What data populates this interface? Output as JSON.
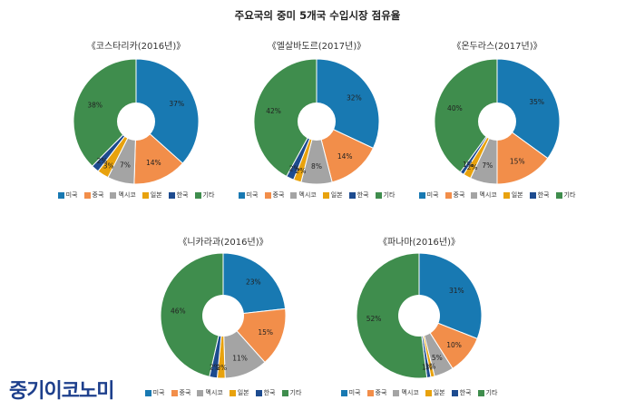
{
  "title": "주요국의 중미 5개국 수입시장 점유율",
  "brand": "중기이코노미",
  "colors": {
    "미국": "#1879b2",
    "중국": "#f28e4a",
    "멕시코": "#a4a4a4",
    "일본": "#e8a20d",
    "한국": "#1d4b8f",
    "기타": "#3f8d4d"
  },
  "chart_data": [
    {
      "type": "pie",
      "title": "《코스타리카(2016년)》",
      "categories": [
        "미국",
        "중국",
        "멕시코",
        "일본",
        "한국",
        "기타"
      ],
      "values": [
        37,
        14,
        7,
        3,
        2,
        38
      ],
      "labels": [
        "37%",
        "14%",
        "7%",
        "3%",
        "2%",
        "38%"
      ]
    },
    {
      "type": "pie",
      "title": "《엘살바도르(2017년)》",
      "categories": [
        "미국",
        "중국",
        "멕시코",
        "일본",
        "한국",
        "기타"
      ],
      "values": [
        32,
        14,
        8,
        2,
        2,
        42
      ],
      "labels": [
        "32%",
        "14%",
        "8%",
        "2%",
        "2%",
        "42%"
      ]
    },
    {
      "type": "pie",
      "title": "《온두라스(2017년)》",
      "categories": [
        "미국",
        "중국",
        "멕시코",
        "일본",
        "한국",
        "기타"
      ],
      "values": [
        35,
        15,
        7,
        2,
        1,
        40
      ],
      "labels": [
        "35%",
        "15%",
        "7%",
        "2%",
        "1%",
        "40%"
      ]
    },
    {
      "type": "pie",
      "title": "《니카라과(2016년)》",
      "categories": [
        "미국",
        "중국",
        "멕시코",
        "일본",
        "한국",
        "기타"
      ],
      "values": [
        23,
        15,
        11,
        2,
        2,
        46
      ],
      "labels": [
        "23%",
        "15%",
        "11%",
        "2%",
        "2%",
        "46%"
      ]
    },
    {
      "type": "pie",
      "title": "《파나마(2016년)》",
      "categories": [
        "미국",
        "중국",
        "멕시코",
        "일본",
        "한국",
        "기타"
      ],
      "values": [
        31,
        10,
        5,
        1,
        1,
        52
      ],
      "labels": [
        "31%",
        "10%",
        "5%",
        "1%",
        "1%",
        "52%"
      ]
    }
  ],
  "legend": [
    "미국",
    "중국",
    "멕시코",
    "일본",
    "한국",
    "기타"
  ]
}
